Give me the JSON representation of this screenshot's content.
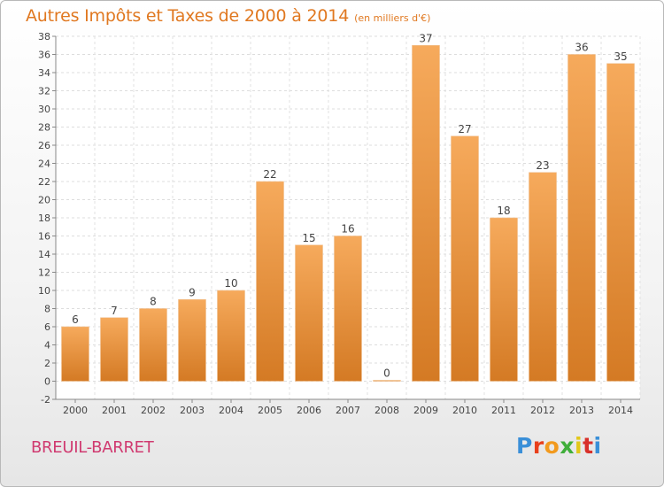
{
  "header": {
    "title": "Autres Impôts et Taxes de 2000 à 2014",
    "unit_note": "(en milliers d'€)"
  },
  "footer": {
    "commune": "BREUIL-BARRET",
    "logo_text": "Proxiti"
  },
  "colors": {
    "title": "#e07820",
    "commune": "#d03a70",
    "bar_light": "#f6aa5c",
    "bar_dark": "#d47a24",
    "logo_letters": [
      "#3a8fd8",
      "#e8401c",
      "#f29a1e",
      "#3fae3a",
      "#e2c81a",
      "#d8302a",
      "#3a8fd8"
    ]
  },
  "chart_data": {
    "type": "bar",
    "categories": [
      "2000",
      "2001",
      "2002",
      "2003",
      "2004",
      "2005",
      "2006",
      "2007",
      "2008",
      "2009",
      "2010",
      "2011",
      "2012",
      "2013",
      "2014"
    ],
    "values": [
      6,
      7,
      8,
      9,
      10,
      22,
      15,
      16,
      0,
      37,
      27,
      18,
      23,
      36,
      35
    ],
    "data_labels": [
      "6",
      "7",
      "8",
      "9",
      "10",
      "22",
      "15",
      "16",
      "0",
      "37",
      "27",
      "18",
      "23",
      "36",
      "35"
    ],
    "title": "Autres Impôts et Taxes de 2000 à 2014",
    "xlabel": "",
    "ylabel": "",
    "ylim": [
      -2,
      38
    ],
    "yticks": [
      -2,
      0,
      2,
      4,
      6,
      8,
      10,
      12,
      14,
      16,
      18,
      20,
      22,
      24,
      26,
      28,
      30,
      32,
      34,
      36,
      38
    ],
    "grid": true
  }
}
